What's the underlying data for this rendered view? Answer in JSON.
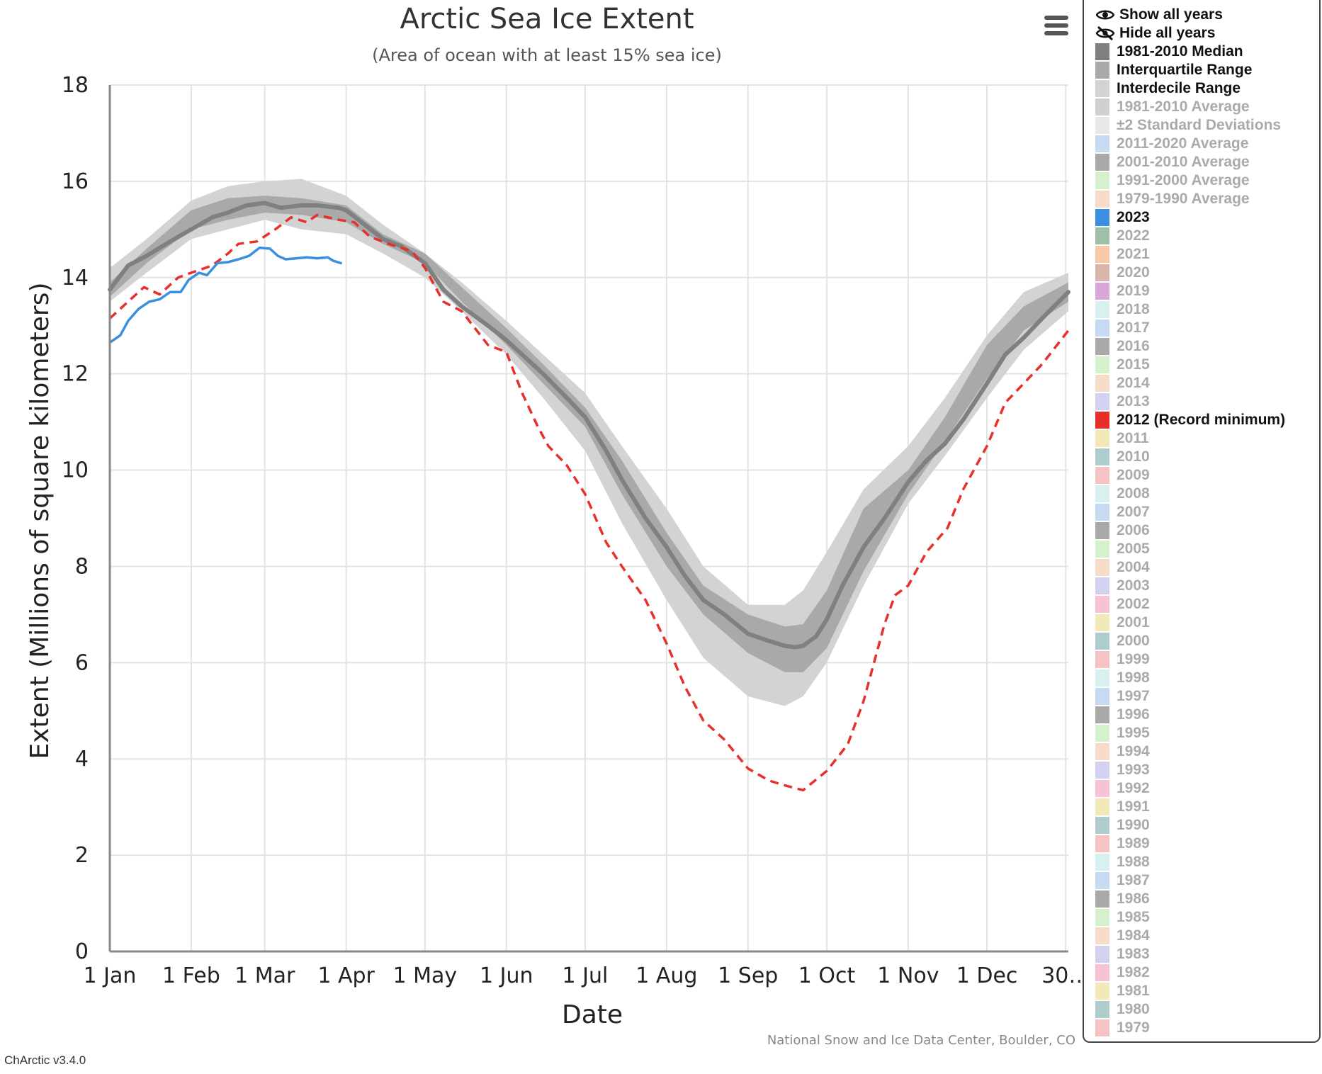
{
  "page": {
    "menu_icon": "hamburger-menu-icon",
    "version_label": "ChArctic v3.4.0",
    "credits": "National Snow and Ice Data Center, Boulder, CO"
  },
  "legend": {
    "show_all": {
      "label": "Show all years",
      "icon": "eye-icon"
    },
    "hide_all": {
      "label": "Hide all years",
      "icon": "eye-slash-icon"
    },
    "items": [
      {
        "label": "1981-2010 Median",
        "color": "#808080",
        "active": true
      },
      {
        "label": "Interquartile Range",
        "color": "#a9a9a9",
        "active": true
      },
      {
        "label": "Interdecile Range",
        "color": "#d3d3d3",
        "active": true
      },
      {
        "label": "1981-2010 Average",
        "color": "#cfcfcf",
        "active": false
      },
      {
        "label": "±2 Standard Deviations",
        "color": "#e8e8e8",
        "active": false
      },
      {
        "label": "2011-2020 Average",
        "color": "#c8daf2",
        "active": false
      },
      {
        "label": "2001-2010 Average",
        "color": "#a9a9a9",
        "active": false
      },
      {
        "label": "1991-2000 Average",
        "color": "#d5f0cc",
        "active": false
      },
      {
        "label": "1979-1990 Average",
        "color": "#f6dcc8",
        "active": false
      },
      {
        "label": "2023",
        "color": "#3a8fe0",
        "active": true
      },
      {
        "label": "2022",
        "color": "#9fbfa8",
        "active": false
      },
      {
        "label": "2021",
        "color": "#f7c9a6",
        "active": false
      },
      {
        "label": "2020",
        "color": "#d9b4a8",
        "active": false
      },
      {
        "label": "2019",
        "color": "#d9a6d9",
        "active": false
      },
      {
        "label": "2018",
        "color": "#d8f0f0",
        "active": false
      },
      {
        "label": "2017",
        "color": "#c8daf2",
        "active": false
      },
      {
        "label": "2016",
        "color": "#a9a9a9",
        "active": false
      },
      {
        "label": "2015",
        "color": "#d5f0cc",
        "active": false
      },
      {
        "label": "2014",
        "color": "#f6dcc8",
        "active": false
      },
      {
        "label": "2013",
        "color": "#d3d1f0",
        "active": false
      },
      {
        "label": "2012 (Record minimum)",
        "color": "#e8302a",
        "active": true
      },
      {
        "label": "2011",
        "color": "#f2e8b8",
        "active": false
      },
      {
        "label": "2010",
        "color": "#aecccc",
        "active": false
      },
      {
        "label": "2009",
        "color": "#f5c3c3",
        "active": false
      },
      {
        "label": "2008",
        "color": "#d8f0f0",
        "active": false
      },
      {
        "label": "2007",
        "color": "#c8daf2",
        "active": false
      },
      {
        "label": "2006",
        "color": "#a9a9a9",
        "active": false
      },
      {
        "label": "2005",
        "color": "#d5f0cc",
        "active": false
      },
      {
        "label": "2004",
        "color": "#f6dcc8",
        "active": false
      },
      {
        "label": "2003",
        "color": "#d3d1f0",
        "active": false
      },
      {
        "label": "2002",
        "color": "#f5c3d3",
        "active": false
      },
      {
        "label": "2001",
        "color": "#f2e8b8",
        "active": false
      },
      {
        "label": "2000",
        "color": "#aecccc",
        "active": false
      },
      {
        "label": "1999",
        "color": "#f5c3c3",
        "active": false
      },
      {
        "label": "1998",
        "color": "#d8f0f0",
        "active": false
      },
      {
        "label": "1997",
        "color": "#c8daf2",
        "active": false
      },
      {
        "label": "1996",
        "color": "#a9a9a9",
        "active": false
      },
      {
        "label": "1995",
        "color": "#d5f0cc",
        "active": false
      },
      {
        "label": "1994",
        "color": "#f6dcc8",
        "active": false
      },
      {
        "label": "1993",
        "color": "#d3d1f0",
        "active": false
      },
      {
        "label": "1992",
        "color": "#f5c3d3",
        "active": false
      },
      {
        "label": "1991",
        "color": "#f2e8b8",
        "active": false
      },
      {
        "label": "1990",
        "color": "#aecccc",
        "active": false
      },
      {
        "label": "1989",
        "color": "#f5c3c3",
        "active": false
      },
      {
        "label": "1988",
        "color": "#d8f0f0",
        "active": false
      },
      {
        "label": "1987",
        "color": "#c8daf2",
        "active": false
      },
      {
        "label": "1986",
        "color": "#a9a9a9",
        "active": false
      },
      {
        "label": "1985",
        "color": "#d5f0cc",
        "active": false
      },
      {
        "label": "1984",
        "color": "#f6dcc8",
        "active": false
      },
      {
        "label": "1983",
        "color": "#d3d1f0",
        "active": false
      },
      {
        "label": "1982",
        "color": "#f5c3d3",
        "active": false
      },
      {
        "label": "1981",
        "color": "#f2e8b8",
        "active": false
      },
      {
        "label": "1980",
        "color": "#aecccc",
        "active": false
      },
      {
        "label": "1979",
        "color": "#f5c3c3",
        "active": false
      }
    ]
  },
  "chart_data": {
    "type": "line",
    "title": "Arctic Sea Ice Extent",
    "subtitle": "(Area of ocean with at least 15% sea ice)",
    "xlabel": "Date",
    "ylabel": "Extent (Millions of square kilometers)",
    "x_unit": "day of year",
    "xlim": [
      1,
      366
    ],
    "ylim": [
      0,
      18
    ],
    "grid": true,
    "x_ticks": [
      {
        "day": 1,
        "label": "1 Jan"
      },
      {
        "day": 32,
        "label": "1 Feb"
      },
      {
        "day": 60,
        "label": "1 Mar"
      },
      {
        "day": 91,
        "label": "1 Apr"
      },
      {
        "day": 121,
        "label": "1 May"
      },
      {
        "day": 152,
        "label": "1 Jun"
      },
      {
        "day": 182,
        "label": "1 Jul"
      },
      {
        "day": 213,
        "label": "1 Aug"
      },
      {
        "day": 244,
        "label": "1 Sep"
      },
      {
        "day": 274,
        "label": "1 Oct"
      },
      {
        "day": 305,
        "label": "1 Nov"
      },
      {
        "day": 335,
        "label": "1 Dec"
      },
      {
        "day": 365,
        "label": "30…"
      }
    ],
    "y_ticks": [
      0,
      2,
      4,
      6,
      8,
      10,
      12,
      14,
      16,
      18
    ],
    "interdecile_range": {
      "name": "Interdecile Range",
      "color": "#d3d3d3",
      "x": [
        1,
        15,
        32,
        46,
        60,
        74,
        91,
        105,
        121,
        135,
        152,
        166,
        182,
        196,
        213,
        227,
        244,
        258,
        265,
        274,
        288,
        305,
        319,
        335,
        349,
        366
      ],
      "low": [
        13.5,
        14.1,
        14.8,
        15.0,
        15.2,
        15.0,
        14.9,
        14.5,
        14.0,
        13.3,
        12.4,
        11.5,
        10.4,
        8.9,
        7.3,
        6.1,
        5.3,
        5.1,
        5.3,
        6.0,
        7.6,
        9.3,
        10.3,
        11.5,
        12.5,
        13.3
      ],
      "high": [
        14.2,
        14.8,
        15.6,
        15.9,
        16.0,
        16.05,
        15.7,
        15.1,
        14.5,
        13.9,
        13.1,
        12.4,
        11.6,
        10.5,
        9.2,
        8.0,
        7.2,
        7.2,
        7.5,
        8.3,
        9.6,
        10.5,
        11.5,
        12.8,
        13.7,
        14.1
      ]
    },
    "interquartile_range": {
      "name": "Interquartile Range",
      "color": "#a9a9a9",
      "x": [
        1,
        15,
        32,
        46,
        60,
        74,
        91,
        105,
        121,
        135,
        152,
        166,
        182,
        196,
        213,
        227,
        244,
        258,
        265,
        274,
        288,
        305,
        319,
        335,
        349,
        366
      ],
      "low": [
        13.6,
        14.3,
        15.0,
        15.2,
        15.35,
        15.3,
        15.15,
        14.7,
        14.3,
        13.5,
        12.6,
        11.8,
        10.9,
        9.5,
        8.0,
        7.0,
        6.2,
        5.8,
        5.8,
        6.3,
        7.9,
        9.5,
        10.6,
        11.9,
        12.9,
        13.5
      ],
      "high": [
        13.9,
        14.6,
        15.4,
        15.65,
        15.7,
        15.65,
        15.5,
        14.9,
        14.5,
        13.8,
        12.95,
        12.2,
        11.3,
        10.2,
        8.7,
        7.6,
        7.0,
        6.75,
        6.8,
        7.5,
        9.2,
        10.0,
        11.1,
        12.6,
        13.4,
        13.9
      ]
    },
    "series": [
      {
        "name": "1981-2010 Median",
        "color": "#808080",
        "style": "solid",
        "x": [
          1,
          8,
          15,
          24,
          32,
          40,
          46,
          53,
          60,
          66,
          74,
          80,
          88,
          91,
          98,
          105,
          112,
          121,
          128,
          135,
          145,
          152,
          160,
          166,
          175,
          182,
          190,
          196,
          205,
          213,
          220,
          227,
          235,
          244,
          252,
          258,
          262,
          265,
          270,
          274,
          280,
          288,
          296,
          305,
          312,
          319,
          326,
          335,
          342,
          349,
          356,
          366
        ],
        "y": [
          13.75,
          14.25,
          14.45,
          14.75,
          15.0,
          15.25,
          15.35,
          15.5,
          15.55,
          15.45,
          15.5,
          15.5,
          15.45,
          15.4,
          15.1,
          14.8,
          14.65,
          14.3,
          13.75,
          13.4,
          13.0,
          12.7,
          12.3,
          12.0,
          11.5,
          11.1,
          10.4,
          9.8,
          9.0,
          8.4,
          7.8,
          7.3,
          7.0,
          6.6,
          6.45,
          6.35,
          6.32,
          6.35,
          6.55,
          6.9,
          7.6,
          8.4,
          9.0,
          9.75,
          10.2,
          10.55,
          11.05,
          11.8,
          12.4,
          12.75,
          13.15,
          13.7
        ]
      },
      {
        "name": "2012 (Record minimum)",
        "color": "#e8302a",
        "style": "dashed",
        "x": [
          1,
          7,
          14,
          20,
          27,
          32,
          40,
          46,
          50,
          57,
          64,
          70,
          76,
          80,
          88,
          94,
          100,
          107,
          116,
          121,
          128,
          135,
          145,
          152,
          158,
          164,
          168,
          175,
          182,
          190,
          196,
          205,
          213,
          220,
          227,
          235,
          244,
          252,
          258,
          265,
          274,
          282,
          288,
          296,
          300,
          305,
          312,
          320,
          326,
          335,
          342,
          349,
          356,
          366
        ],
        "y": [
          13.15,
          13.45,
          13.8,
          13.65,
          14.0,
          14.1,
          14.25,
          14.5,
          14.7,
          14.75,
          15.0,
          15.25,
          15.15,
          15.3,
          15.2,
          15.15,
          14.85,
          14.7,
          14.55,
          14.2,
          13.5,
          13.3,
          12.6,
          12.45,
          11.6,
          10.9,
          10.5,
          10.1,
          9.5,
          8.5,
          8.0,
          7.3,
          6.4,
          5.5,
          4.8,
          4.4,
          3.8,
          3.55,
          3.45,
          3.35,
          3.75,
          4.3,
          5.2,
          6.8,
          7.4,
          7.6,
          8.3,
          8.8,
          9.6,
          10.5,
          11.4,
          11.8,
          12.2,
          12.9
        ]
      },
      {
        "name": "2023",
        "color": "#3a8fe0",
        "style": "solid",
        "x": [
          1,
          5,
          8,
          12,
          16,
          20,
          24,
          28,
          31,
          35,
          38,
          42,
          46,
          50,
          54,
          58,
          62,
          65,
          68,
          72,
          76,
          80,
          84,
          86,
          89
        ],
        "y": [
          12.65,
          12.8,
          13.1,
          13.35,
          13.5,
          13.55,
          13.7,
          13.7,
          13.95,
          14.1,
          14.05,
          14.3,
          14.32,
          14.38,
          14.45,
          14.62,
          14.6,
          14.45,
          14.38,
          14.4,
          14.42,
          14.4,
          14.42,
          14.35,
          14.3
        ]
      }
    ]
  }
}
